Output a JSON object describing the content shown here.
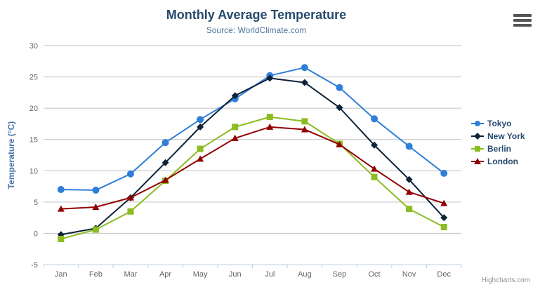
{
  "header": {
    "title": "Monthly Average Temperature",
    "subtitle": "Source: WorldClimate.com"
  },
  "credits": {
    "label": "Highcharts.com"
  },
  "export_menu": {
    "icon": "hamburger-menu-icon"
  },
  "colors": {
    "title": "#274b6d",
    "subtitle": "#4d759e",
    "axis_title": "#4572a7",
    "tick_label": "#666666",
    "gridline": "#c0c0c0",
    "axis_line": "#c0d0e0",
    "legend_text": "#274b6d",
    "background": "#ffffff"
  },
  "chart_data": {
    "type": "line",
    "title": "Monthly Average Temperature",
    "subtitle": "Source: WorldClimate.com",
    "categories": [
      "Jan",
      "Feb",
      "Mar",
      "Apr",
      "May",
      "Jun",
      "Jul",
      "Aug",
      "Sep",
      "Oct",
      "Nov",
      "Dec"
    ],
    "xlabel": "",
    "ylabel": "Temperature (°C)",
    "ylim": [
      -5,
      30
    ],
    "ytick_interval": 5,
    "yticks": [
      -5,
      0,
      5,
      10,
      15,
      20,
      25,
      30
    ],
    "grid": true,
    "legend_position": "right",
    "series": [
      {
        "name": "Tokyo",
        "color": "#2f7ed8",
        "marker": "circle",
        "values": [
          7.0,
          6.9,
          9.5,
          14.5,
          18.2,
          21.5,
          25.2,
          26.5,
          23.3,
          18.3,
          13.9,
          9.6
        ]
      },
      {
        "name": "New York",
        "color": "#0d233a",
        "marker": "diamond",
        "values": [
          -0.2,
          0.8,
          5.7,
          11.3,
          17.0,
          22.0,
          24.8,
          24.1,
          20.1,
          14.1,
          8.6,
          2.5
        ]
      },
      {
        "name": "Berlin",
        "color": "#8bbc21",
        "marker": "square",
        "values": [
          -0.9,
          0.6,
          3.5,
          8.4,
          13.5,
          17.0,
          18.6,
          17.9,
          14.3,
          9.0,
          3.9,
          1.0
        ]
      },
      {
        "name": "London",
        "color": "#910000",
        "marker": "triangle",
        "values": [
          3.9,
          4.2,
          5.7,
          8.5,
          11.9,
          15.2,
          17.0,
          16.6,
          14.2,
          10.3,
          6.6,
          4.8
        ]
      }
    ]
  }
}
